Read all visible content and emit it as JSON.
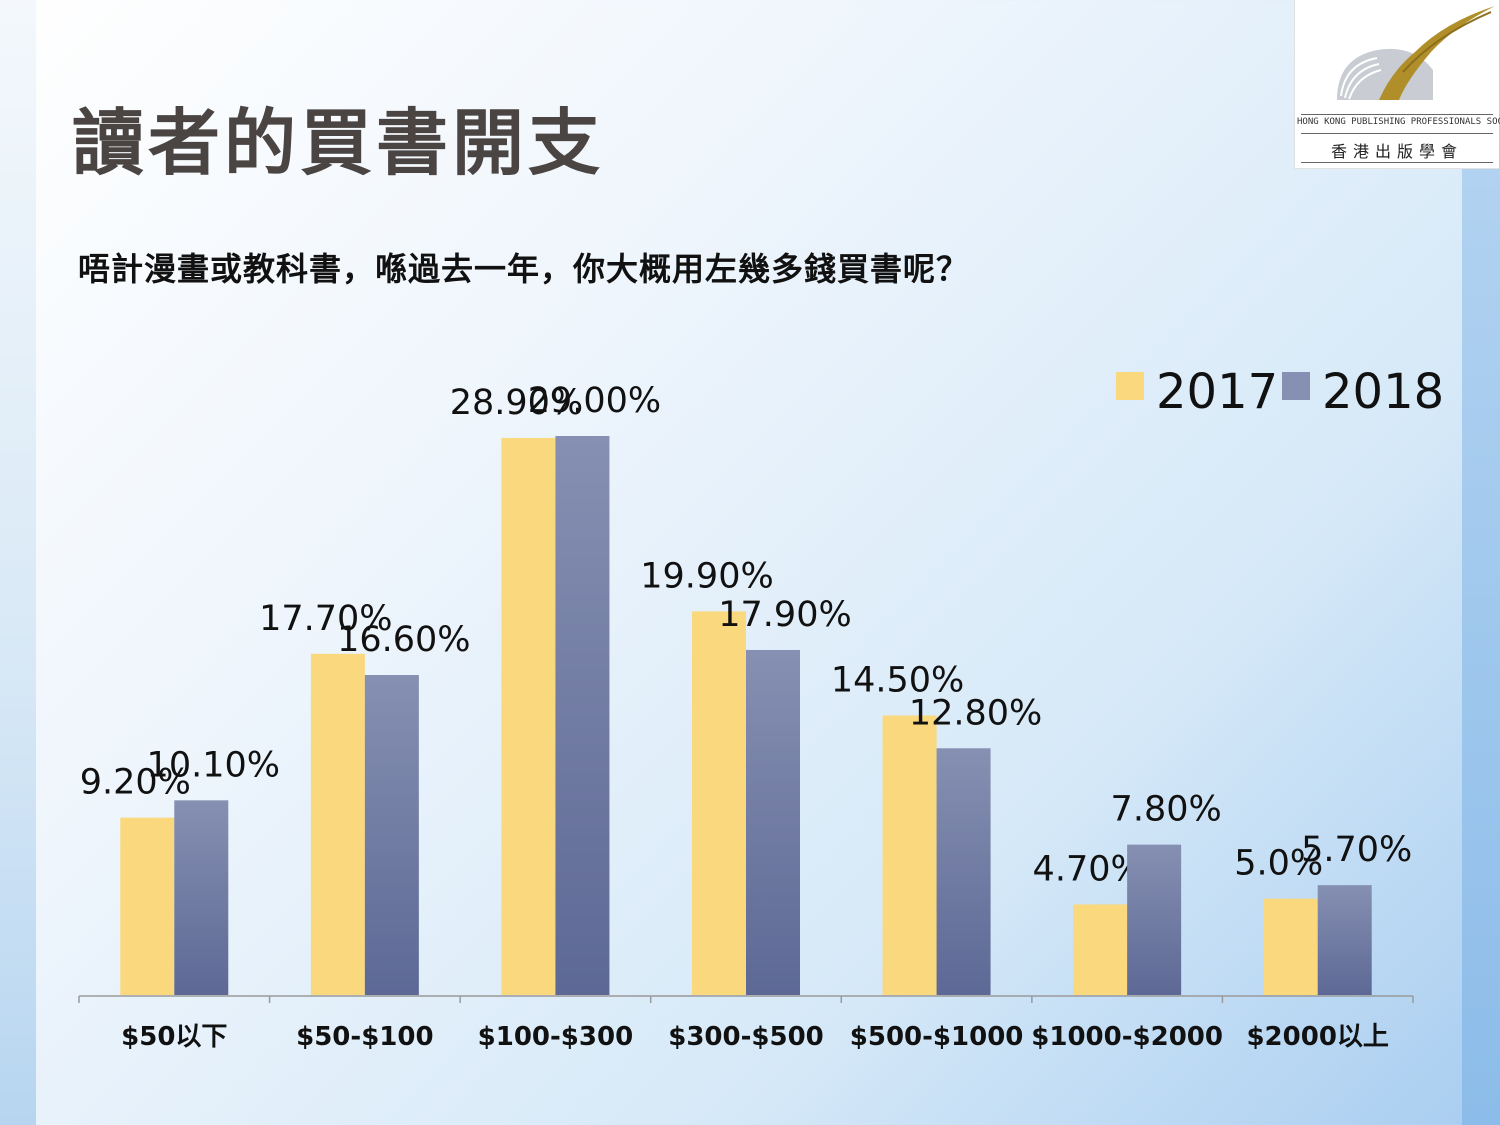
{
  "slide": {
    "title": "讀者的買書開支",
    "question": "唔計漫畫或教科書，喺過去一年，你大概用左幾多錢買書呢？"
  },
  "logo": {
    "name_en": "HONG KONG PUBLISHING PROFESSIONALS SOCIETY",
    "name_zh": "香港出版學會"
  },
  "colors": {
    "series_2017": "#f9d87e",
    "series_2018_top": "#8690b2",
    "series_2018_bottom": "#5d6895",
    "axis": "#9a9a9a"
  },
  "chart_data": {
    "type": "bar",
    "categories": [
      "$50以下",
      "$50-$100",
      "$100-$300",
      "$300-$500",
      "$500-$1000",
      "$1000-$2000",
      "$2000以上"
    ],
    "series": [
      {
        "name": "2017",
        "values": [
          9.2,
          17.7,
          28.9,
          19.9,
          14.5,
          4.7,
          5.0
        ],
        "labels": [
          "9.20%",
          "17.70%",
          "28.90%",
          "19.90%",
          "14.50%",
          "4.70%",
          "5.0%"
        ]
      },
      {
        "name": "2018",
        "values": [
          10.1,
          16.6,
          29.0,
          17.9,
          12.8,
          7.8,
          5.7
        ],
        "labels": [
          "10.10%",
          "16.60%",
          "29.00%",
          "17.90%",
          "12.80%",
          "7.80%",
          "5.70%"
        ]
      }
    ],
    "unit": "%",
    "ylim": [
      0,
      29
    ],
    "grid": false,
    "legend": "top-right"
  }
}
